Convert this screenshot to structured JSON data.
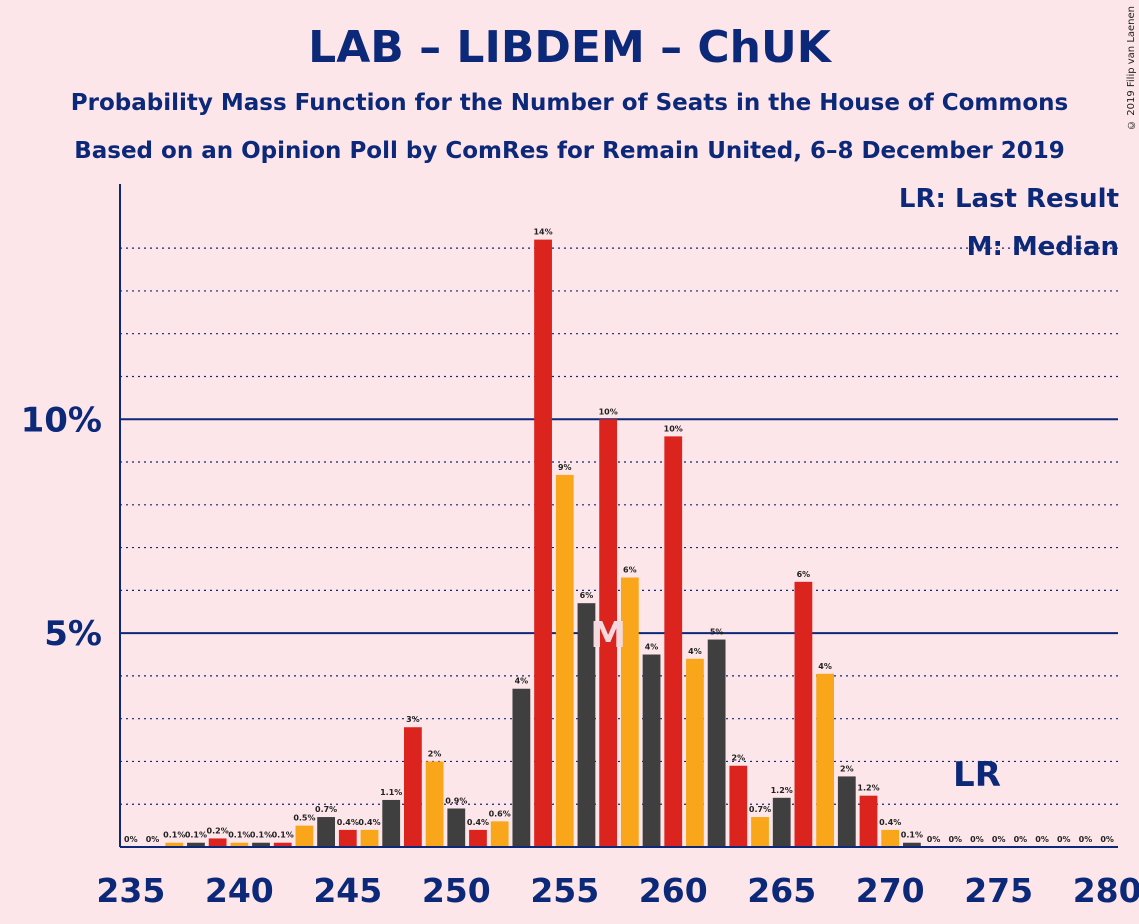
{
  "chart_data": {
    "type": "bar",
    "title": "LAB – LIBDEM – ChUK",
    "subtitle": "Probability Mass Function for the Number of Seats in the House of Commons",
    "subtitle2": "Based on an Opinion Poll by ComRes for Remain United, 6–8 December 2019",
    "legend": [
      "LR: Last Result",
      "M: Median"
    ],
    "copyright": "© 2019 Filip van Laenen",
    "x_ticks": [
      "235",
      "240",
      "245",
      "250",
      "255",
      "260",
      "265",
      "270",
      "275",
      "280"
    ],
    "y_ticks": [
      "5%",
      "10%"
    ],
    "ylim": [
      0,
      15.5
    ],
    "xlim": [
      234.5,
      280.5
    ],
    "median_seat": 257,
    "median_mark": "M",
    "last_result_seat": 274,
    "last_result_mark": "LR",
    "series_colors": [
      "#3F3F3F",
      "#DC241F",
      "#FAA61A"
    ],
    "x": [
      235,
      236,
      237,
      238,
      239,
      240,
      241,
      242,
      243,
      244,
      245,
      246,
      247,
      248,
      249,
      250,
      251,
      252,
      253,
      254,
      255,
      256,
      257,
      258,
      259,
      260,
      261,
      262,
      263,
      264,
      265,
      266,
      267,
      268,
      269,
      270,
      271,
      272,
      273,
      274,
      275,
      276,
      277,
      278,
      279,
      280
    ],
    "values": [
      0,
      0,
      0.1,
      0.1,
      0.2,
      0.1,
      0.1,
      0.1,
      0.5,
      0.7,
      0.4,
      0.4,
      1.1,
      2.8,
      2.0,
      0.9,
      0.4,
      0.6,
      3.7,
      14.2,
      8.7,
      5.7,
      10.0,
      6.3,
      4.5,
      9.6,
      4.4,
      4.85,
      1.9,
      0.7,
      1.15,
      6.2,
      4.05,
      1.65,
      1.2,
      0.4,
      0.1,
      0,
      0,
      0,
      0,
      0,
      0,
      0,
      0,
      0
    ],
    "labels": [
      "0%",
      "0%",
      "0.1%",
      "0.1%",
      "0.2%",
      "0.1%",
      "0.1%",
      "0.1%",
      "0.5%",
      "0.7%",
      "0.4%",
      "0.4%",
      "1.1%",
      "3%",
      "2%",
      "0.9%",
      "0.4%",
      "0.6%",
      "4%",
      "14%",
      "9%",
      "6%",
      "10%",
      "6%",
      "4%",
      "10%",
      "4%",
      "5%",
      "2%",
      "0.7%",
      "1.2%",
      "6%",
      "4%",
      "2%",
      "1.2%",
      "0.4%",
      "0.1%",
      "0%",
      "0%",
      "0%",
      "0%",
      "0%",
      "0%",
      "0%",
      "0%",
      "0%"
    ]
  }
}
